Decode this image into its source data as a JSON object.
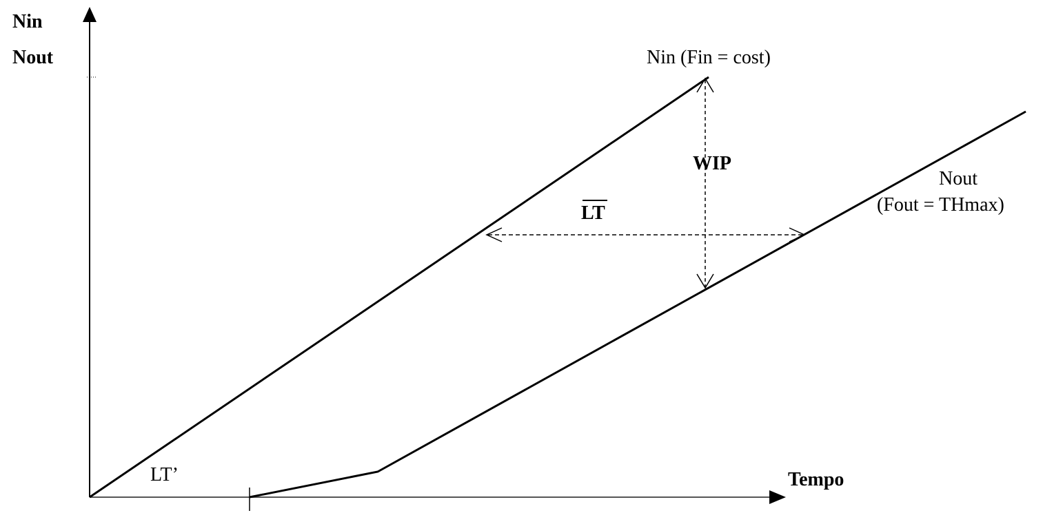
{
  "axes": {
    "y_label_line1": "Nin",
    "y_label_line2": "Nout",
    "x_label": "Tempo"
  },
  "curves": {
    "nin_label": "Nin (Fin = cost)",
    "nout_label_line1": "Nout",
    "nout_label_line2": "(Fout = THmax)",
    "lt_prime_label": "LT’"
  },
  "annotations": {
    "wip_label": "WIP",
    "lt_label": "LT"
  },
  "colors": {
    "line": "#000000",
    "axis": "#000000",
    "x_axis": "#555555"
  }
}
